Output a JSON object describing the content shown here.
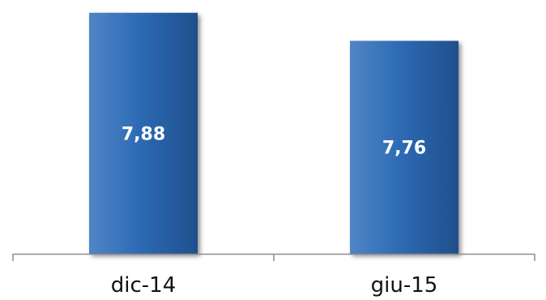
{
  "chart_data": {
    "type": "bar",
    "categories": [
      "dic-14",
      "giu-15"
    ],
    "values": [
      7.88,
      7.76
    ],
    "value_labels": [
      "7,88",
      "7,76"
    ],
    "ylim": [
      6.85,
      7.9
    ],
    "grid": false,
    "legend": "none",
    "colors": {
      "bar_light": "#4f86c6",
      "bar_mid": "#2e6bb5",
      "bar_dark": "#1f4f8c",
      "axis": "#8c8c8c",
      "label": "#ffffff",
      "tick_text": "#111111"
    }
  }
}
